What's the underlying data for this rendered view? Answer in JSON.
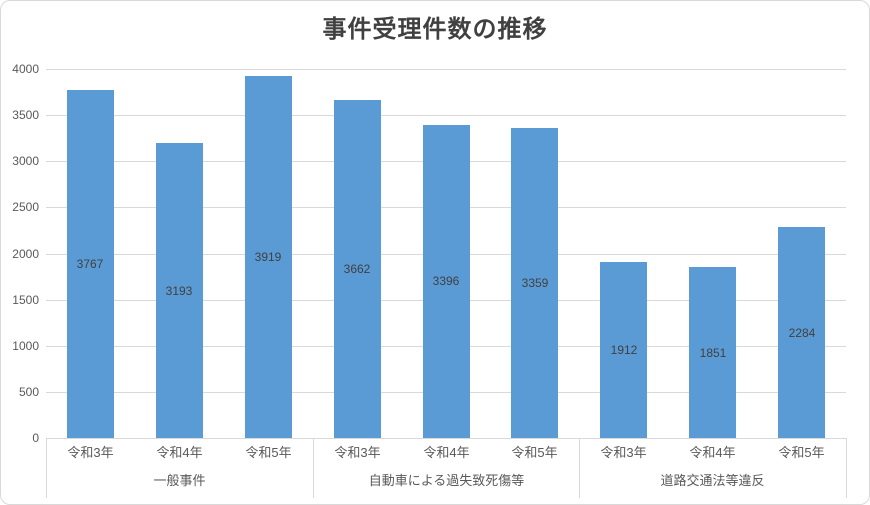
{
  "chart_data": {
    "type": "bar",
    "title": "事件受理件数の推移",
    "groups": [
      {
        "label": "一般事件",
        "categories": [
          "令和3年",
          "令和4年",
          "令和5年"
        ],
        "values": [
          3767,
          3193,
          3919
        ]
      },
      {
        "label": "自動車による過失致死傷等",
        "categories": [
          "令和3年",
          "令和4年",
          "令和5年"
        ],
        "values": [
          3662,
          3396,
          3359
        ]
      },
      {
        "label": "道路交通法等違反",
        "categories": [
          "令和3年",
          "令和4年",
          "令和5年"
        ],
        "values": [
          1912,
          1851,
          2284
        ]
      }
    ],
    "ylim": [
      0,
      4000
    ],
    "yticks": [
      0,
      500,
      1000,
      1500,
      2000,
      2500,
      3000,
      3500,
      4000
    ],
    "grid": true,
    "legend": "none",
    "data_label_position": "center",
    "colors": {
      "bar": "#5B9BD5",
      "gridline": "#D9D9D9",
      "axis_text": "#595959",
      "data_label": "#404040",
      "title": "#404040",
      "border": "#D9D9D9",
      "background": "#FFFFFF"
    }
  }
}
